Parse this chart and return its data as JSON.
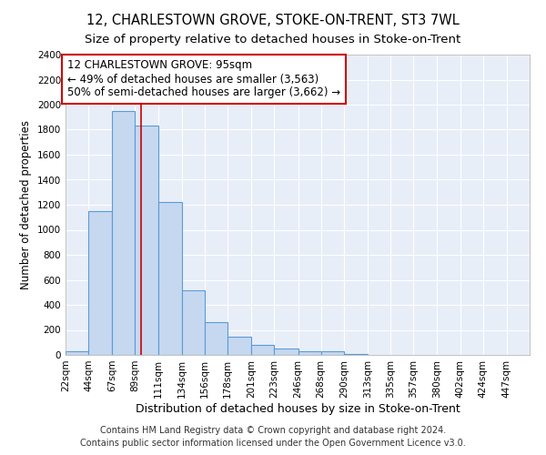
{
  "title": "12, CHARLESTOWN GROVE, STOKE-ON-TRENT, ST3 7WL",
  "subtitle": "Size of property relative to detached houses in Stoke-on-Trent",
  "xlabel": "Distribution of detached houses by size in Stoke-on-Trent",
  "ylabel": "Number of detached properties",
  "footer_line1": "Contains HM Land Registry data © Crown copyright and database right 2024.",
  "footer_line2": "Contains public sector information licensed under the Open Government Licence v3.0.",
  "bar_edges": [
    22,
    44,
    67,
    89,
    111,
    134,
    156,
    178,
    201,
    223,
    246,
    268,
    290,
    313,
    335,
    357,
    380,
    402,
    424,
    447,
    469
  ],
  "bar_heights": [
    30,
    1150,
    1950,
    1830,
    1220,
    520,
    265,
    145,
    80,
    48,
    30,
    30,
    8,
    0,
    0,
    0,
    0,
    0,
    0,
    0
  ],
  "bar_color": "#c5d8f0",
  "bar_edgecolor": "#5b9bd5",
  "property_size": 95,
  "annotation_title": "12 CHARLESTOWN GROVE: 95sqm",
  "annotation_line2": "← 49% of detached houses are smaller (3,563)",
  "annotation_line3": "50% of semi-detached houses are larger (3,662) →",
  "vline_color": "#cc0000",
  "annotation_box_edgecolor": "#cc0000",
  "ylim": [
    0,
    2400
  ],
  "yticks": [
    0,
    200,
    400,
    600,
    800,
    1000,
    1200,
    1400,
    1600,
    1800,
    2000,
    2200,
    2400
  ],
  "bg_color": "#e8eef8",
  "grid_color": "#ffffff",
  "title_fontsize": 10.5,
  "subtitle_fontsize": 9.5,
  "tick_label_fontsize": 7.5,
  "ylabel_fontsize": 8.5,
  "xlabel_fontsize": 9,
  "annotation_fontsize": 8.5,
  "footer_fontsize": 7
}
